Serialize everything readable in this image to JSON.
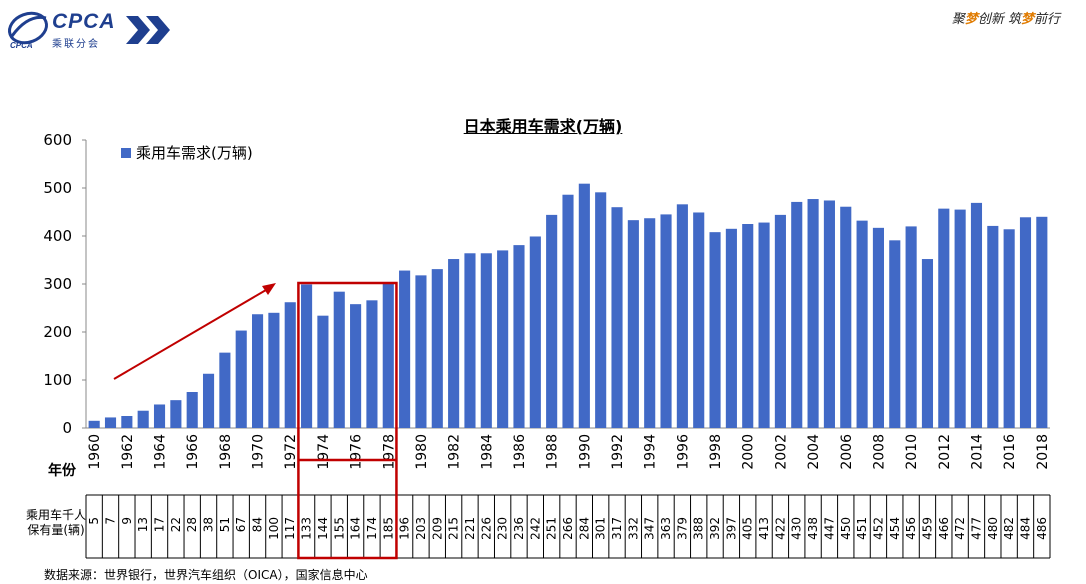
{
  "header": {
    "logo_text": "CPCA",
    "logo_sub": "乘联分会",
    "slogan_parts": [
      "聚",
      "梦",
      "创新 筑",
      "梦",
      "前行"
    ]
  },
  "chart_data": {
    "type": "bar",
    "title": "日本乘用车需求(万辆)",
    "xlabel": "年份",
    "ylabel": "",
    "ylim": [
      0,
      600
    ],
    "yticks": [
      0,
      100,
      200,
      300,
      400,
      500,
      600
    ],
    "legend": {
      "placement": "top-left",
      "entries": [
        "乘用车需求(万辆)"
      ]
    },
    "grid": false,
    "bar_color": "#4169c6",
    "categories": [
      1960,
      1961,
      1962,
      1963,
      1964,
      1965,
      1966,
      1967,
      1968,
      1969,
      1970,
      1971,
      1972,
      1973,
      1974,
      1975,
      1976,
      1977,
      1978,
      1979,
      1980,
      1981,
      1982,
      1983,
      1984,
      1985,
      1986,
      1987,
      1988,
      1989,
      1990,
      1991,
      1992,
      1993,
      1994,
      1995,
      1996,
      1997,
      1998,
      1999,
      2000,
      2001,
      2002,
      2003,
      2004,
      2005,
      2006,
      2007,
      2008,
      2009,
      2010,
      2011,
      2012,
      2013,
      2014,
      2015,
      2016,
      2017,
      2018
    ],
    "xtick_labels": [
      "1960",
      "1962",
      "1964",
      "1966",
      "1968",
      "1970",
      "1972",
      "1974",
      "1976",
      "1978",
      "1980",
      "1982",
      "1984",
      "1986",
      "1988",
      "1990",
      "1992",
      "1994",
      "1996",
      "1998",
      "2000",
      "2002",
      "2004",
      "2006",
      "2008",
      "2010",
      "2012",
      "2014",
      "2016",
      "2018"
    ],
    "series": [
      {
        "name": "乘用车需求(万辆)",
        "values": [
          15,
          22,
          25,
          36,
          49,
          58,
          75,
          113,
          157,
          203,
          237,
          240,
          262,
          299,
          234,
          284,
          258,
          266,
          301,
          328,
          318,
          331,
          352,
          364,
          364,
          370,
          381,
          399,
          444,
          486,
          509,
          491,
          460,
          433,
          437,
          445,
          466,
          449,
          408,
          415,
          425,
          428,
          444,
          471,
          477,
          474,
          461,
          432,
          417,
          391,
          420,
          352,
          457,
          455,
          469,
          421,
          414,
          439,
          440
        ]
      }
    ],
    "ownership_table": {
      "label": "乘用车千人保有量(辆)",
      "values": [
        5,
        7,
        9,
        13,
        17,
        22,
        28,
        38,
        51,
        67,
        84,
        100,
        117,
        133,
        144,
        155,
        164,
        174,
        185,
        196,
        203,
        209,
        215,
        221,
        226,
        230,
        236,
        242,
        251,
        266,
        284,
        301,
        317,
        332,
        347,
        363,
        379,
        388,
        392,
        397,
        405,
        413,
        422,
        430,
        438,
        447,
        450,
        451,
        452,
        454,
        456,
        459,
        466,
        472,
        477,
        480,
        482,
        484,
        486
      ]
    },
    "annotations": {
      "highlight_years": [
        1973,
        1978
      ],
      "highlight_color": "#c00000",
      "trend_arrow_color": "#c00000"
    }
  },
  "source_text": "数据来源：世界银行，世界汽车组织（OICA），国家信息中心"
}
